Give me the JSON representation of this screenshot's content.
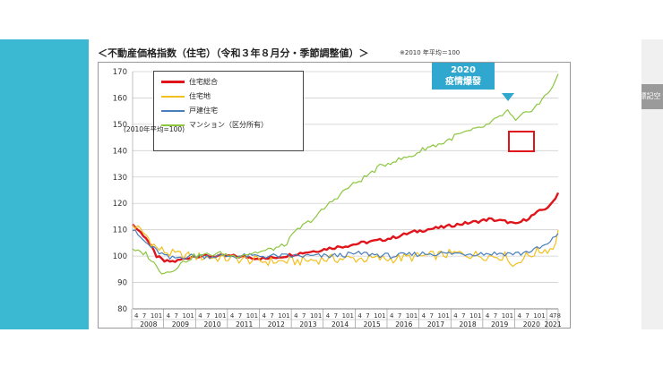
{
  "slide": {
    "title": "＜不動産価格指数（住宅）（令和３年８月分・季節調整値）＞",
    "note": "※2010 年平均＝100"
  },
  "side_tab": {
    "label": "標記空"
  },
  "legend": {
    "items": [
      {
        "label": "住宅総合",
        "color": "#e0151b"
      },
      {
        "label": "住宅地",
        "color": "#f2c01e"
      },
      {
        "label": "戸建住宅",
        "color": "#4a7ebb"
      },
      {
        "label": "マンション（区分所有）",
        "color": "#8cc63f"
      }
    ],
    "base_note": "(2010年平均=100)"
  },
  "annotation": {
    "line1": "2020",
    "line2": "疫情爆發",
    "highlight_color": "#e0151b",
    "callout_color": "#2fa7cf"
  },
  "chart_data": {
    "type": "line",
    "title": "＜不動産価格指数（住宅）（令和３年８月分・季節調整値）＞",
    "ylim": [
      80,
      170
    ],
    "yticks": [
      80,
      90,
      100,
      110,
      120,
      130,
      140,
      150,
      160,
      170
    ],
    "x_unit": "month",
    "x_start": "2008-04",
    "x_end": "2021-08",
    "years": [
      "2008",
      "2009",
      "2010",
      "2011",
      "2012",
      "2013",
      "2014",
      "2015",
      "2016",
      "2017",
      "2018",
      "2019",
      "2020",
      "2021"
    ],
    "month_tick_labels": [
      "4",
      "7",
      "10",
      "1"
    ],
    "final_month_label": "78",
    "grid": true,
    "series": [
      {
        "name": "住宅総合",
        "color": "#e0151b",
        "anchors": [
          [
            "2008-04",
            112
          ],
          [
            "2008-09",
            107
          ],
          [
            "2009-01",
            100
          ],
          [
            "2009-04",
            98
          ],
          [
            "2009-08",
            98
          ],
          [
            "2010-03",
            100
          ],
          [
            "2011-06",
            100
          ],
          [
            "2012-06",
            99
          ],
          [
            "2013-01",
            100
          ],
          [
            "2013-06",
            101
          ],
          [
            "2014-01",
            102
          ],
          [
            "2014-06",
            103
          ],
          [
            "2015-01",
            104
          ],
          [
            "2015-06",
            105
          ],
          [
            "2016-01",
            106
          ],
          [
            "2016-06",
            107
          ],
          [
            "2017-01",
            109
          ],
          [
            "2017-06",
            110
          ],
          [
            "2018-01",
            111
          ],
          [
            "2018-06",
            112
          ],
          [
            "2019-01",
            113
          ],
          [
            "2019-06",
            114
          ],
          [
            "2020-01",
            113
          ],
          [
            "2020-04",
            112
          ],
          [
            "2020-08",
            114
          ],
          [
            "2021-01",
            117
          ],
          [
            "2021-05",
            119
          ],
          [
            "2021-08",
            124
          ]
        ]
      },
      {
        "name": "住宅地",
        "color": "#f2c01e",
        "anchors": [
          [
            "2008-04",
            112
          ],
          [
            "2008-09",
            108
          ],
          [
            "2009-01",
            103
          ],
          [
            "2009-06",
            101
          ],
          [
            "2010-01",
            100
          ],
          [
            "2011-06",
            99
          ],
          [
            "2012-06",
            98
          ],
          [
            "2013-06",
            98
          ],
          [
            "2014-06",
            99
          ],
          [
            "2015-06",
            99
          ],
          [
            "2016-06",
            99
          ],
          [
            "2017-06",
            100
          ],
          [
            "2018-06",
            101
          ],
          [
            "2019-06",
            100
          ],
          [
            "2020-01",
            100
          ],
          [
            "2020-03",
            96
          ],
          [
            "2020-06",
            99
          ],
          [
            "2021-01",
            102
          ],
          [
            "2021-06",
            103
          ],
          [
            "2021-08",
            109
          ]
        ]
      },
      {
        "name": "戸建住宅",
        "color": "#4a7ebb",
        "anchors": [
          [
            "2008-04",
            110
          ],
          [
            "2008-09",
            105
          ],
          [
            "2009-01",
            102
          ],
          [
            "2009-06",
            99
          ],
          [
            "2010-01",
            100
          ],
          [
            "2011-06",
            100
          ],
          [
            "2012-06",
            100
          ],
          [
            "2013-06",
            100
          ],
          [
            "2014-06",
            100
          ],
          [
            "2015-06",
            101
          ],
          [
            "2016-06",
            100
          ],
          [
            "2017-06",
            101
          ],
          [
            "2018-06",
            101
          ],
          [
            "2019-06",
            101
          ],
          [
            "2020-06",
            101
          ],
          [
            "2021-01",
            103
          ],
          [
            "2021-05",
            105
          ],
          [
            "2021-08",
            109
          ]
        ]
      },
      {
        "name": "マンション（区分所有）",
        "color": "#8cc63f",
        "anchors": [
          [
            "2008-04",
            102
          ],
          [
            "2008-09",
            101
          ],
          [
            "2009-01",
            96
          ],
          [
            "2009-03",
            94
          ],
          [
            "2009-06",
            94
          ],
          [
            "2009-10",
            97
          ],
          [
            "2010-03",
            100
          ],
          [
            "2011-01",
            101
          ],
          [
            "2011-06",
            100
          ],
          [
            "2012-06",
            102
          ],
          [
            "2013-01",
            104
          ],
          [
            "2013-06",
            110
          ],
          [
            "2014-01",
            115
          ],
          [
            "2014-06",
            120
          ],
          [
            "2015-01",
            126
          ],
          [
            "2015-06",
            129
          ],
          [
            "2016-01",
            134
          ],
          [
            "2016-06",
            136
          ],
          [
            "2017-01",
            138
          ],
          [
            "2017-06",
            141
          ],
          [
            "2018-01",
            143
          ],
          [
            "2018-06",
            146
          ],
          [
            "2019-01",
            148
          ],
          [
            "2019-06",
            150
          ],
          [
            "2020-01",
            155
          ],
          [
            "2020-04",
            151
          ],
          [
            "2020-06",
            153
          ],
          [
            "2020-09",
            155
          ],
          [
            "2021-01",
            158
          ],
          [
            "2021-05",
            163
          ],
          [
            "2021-08",
            169
          ]
        ]
      }
    ]
  }
}
